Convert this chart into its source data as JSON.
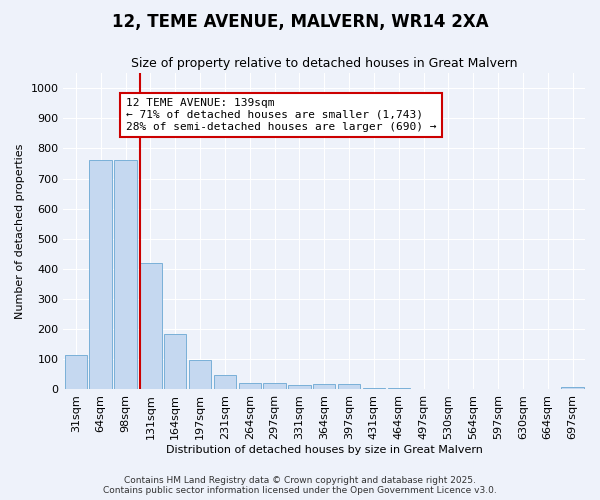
{
  "title": "12, TEME AVENUE, MALVERN, WR14 2XA",
  "subtitle": "Size of property relative to detached houses in Great Malvern",
  "xlabel": "Distribution of detached houses by size in Great Malvern",
  "ylabel": "Number of detached properties",
  "categories": [
    "31sqm",
    "64sqm",
    "98sqm",
    "131sqm",
    "164sqm",
    "197sqm",
    "231sqm",
    "264sqm",
    "297sqm",
    "331sqm",
    "364sqm",
    "397sqm",
    "431sqm",
    "464sqm",
    "497sqm",
    "530sqm",
    "564sqm",
    "597sqm",
    "630sqm",
    "664sqm",
    "697sqm"
  ],
  "values": [
    115,
    760,
    760,
    420,
    185,
    97,
    47,
    22,
    22,
    15,
    17,
    18,
    5,
    5,
    2,
    0,
    0,
    0,
    0,
    0,
    8
  ],
  "bar_color": "#c5d8f0",
  "bar_edge_color": "#7ab0d8",
  "vline_color": "#cc0000",
  "vline_x": 2.575,
  "annotation_text": "12 TEME AVENUE: 139sqm\n← 71% of detached houses are smaller (1,743)\n28% of semi-detached houses are larger (690) →",
  "annotation_box_facecolor": "#ffffff",
  "annotation_box_edgecolor": "#cc0000",
  "ylim": [
    0,
    1050
  ],
  "yticks": [
    0,
    100,
    200,
    300,
    400,
    500,
    600,
    700,
    800,
    900,
    1000
  ],
  "footer_line1": "Contains HM Land Registry data © Crown copyright and database right 2025.",
  "footer_line2": "Contains public sector information licensed under the Open Government Licence v3.0.",
  "bg_color": "#eef2fa",
  "grid_color": "#ffffff",
  "title_fontsize": 12,
  "subtitle_fontsize": 9,
  "axis_label_fontsize": 8,
  "tick_fontsize": 8,
  "annotation_fontsize": 8,
  "footer_fontsize": 6.5
}
